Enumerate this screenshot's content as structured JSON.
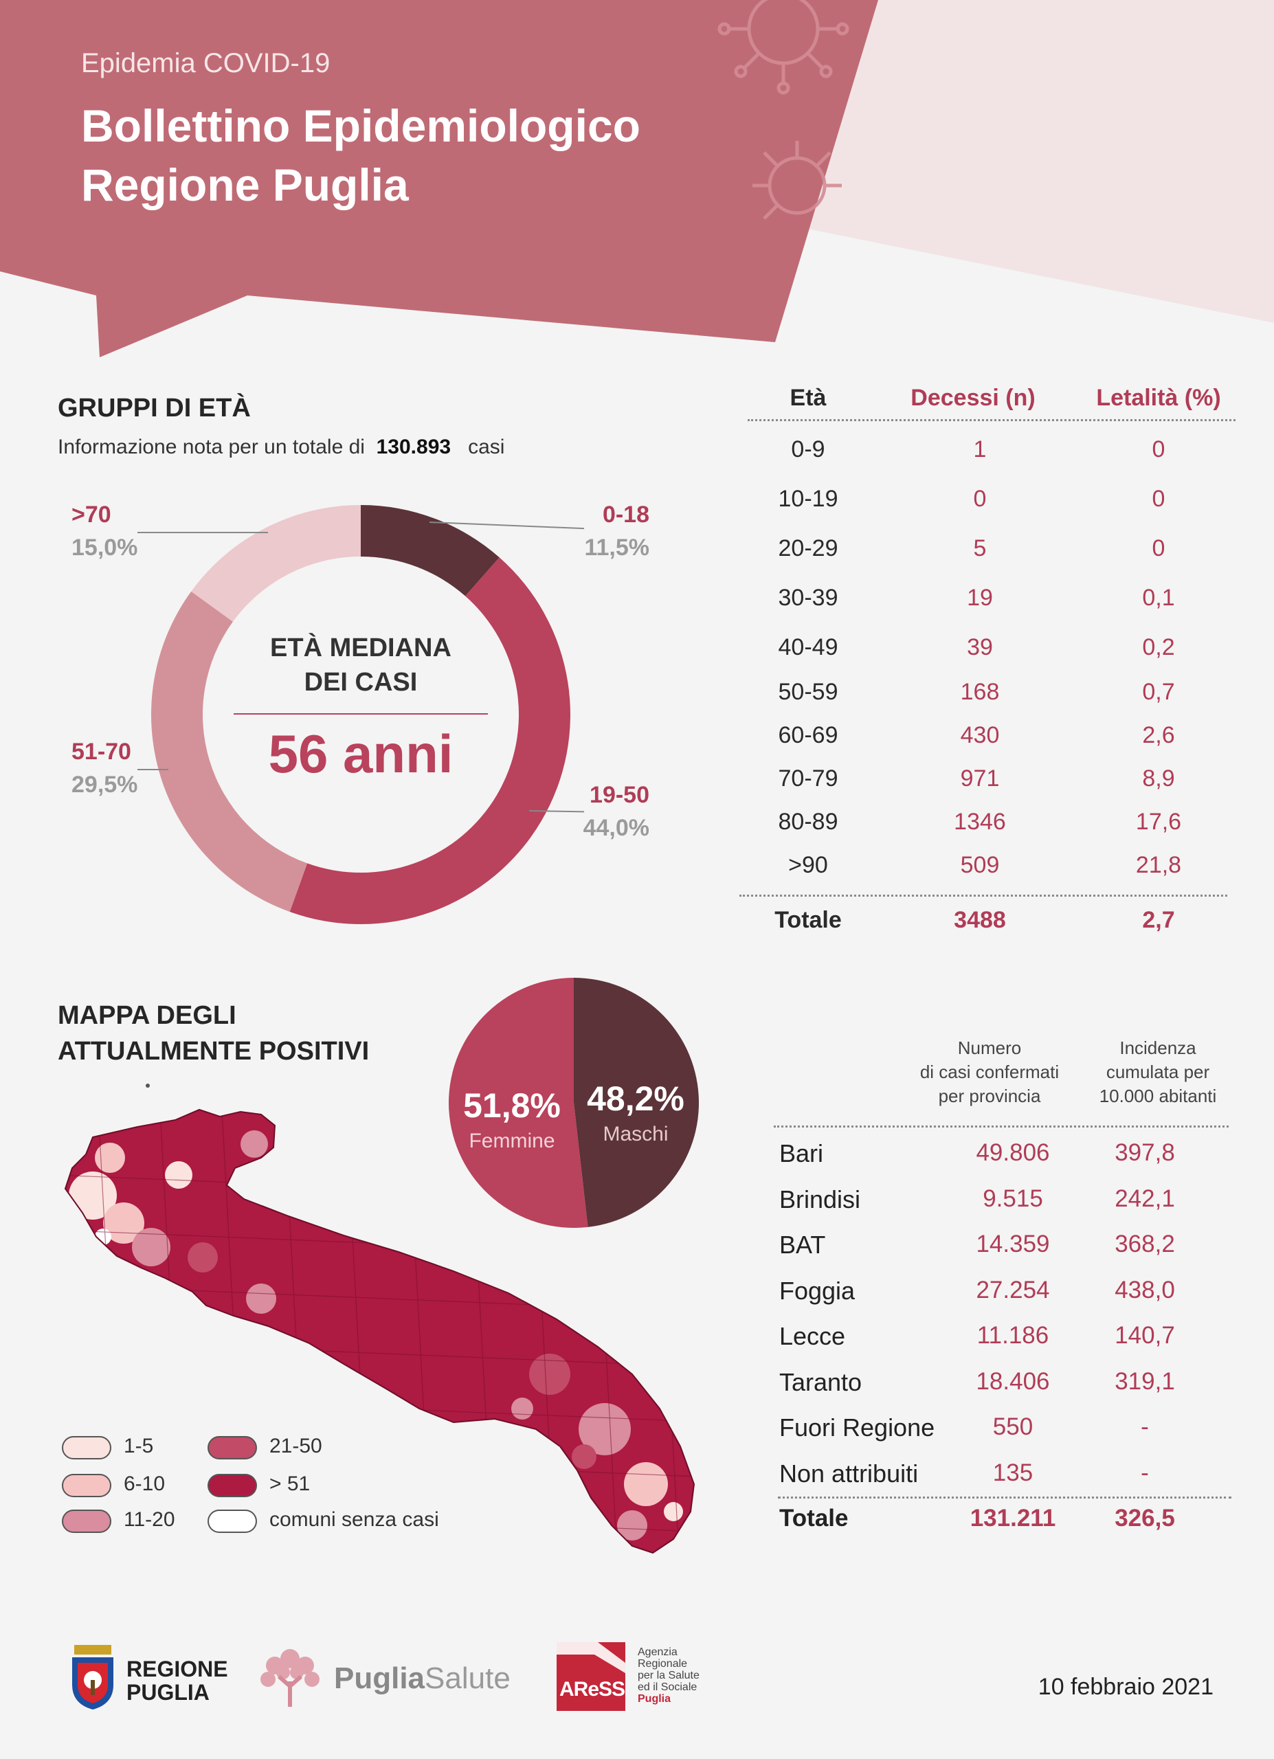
{
  "header": {
    "kicker": "Epidemia COVID-19",
    "title_line1": "Bollettino Epidemiologico",
    "title_line2": "Regione Puglia"
  },
  "age_groups": {
    "title": "GRUPPI DI ETÀ",
    "note_prefix": "Informazione nota per un totale di",
    "note_total": "130.893",
    "note_suffix": "casi",
    "center_label_1": "ETÀ MEDIANA",
    "center_label_2": "DEI CASI",
    "center_value": "56 anni",
    "slices": [
      {
        "label": "0-18",
        "pct": "11,5%",
        "value": 11.5,
        "color": "#5b3338"
      },
      {
        "label": "19-50",
        "pct": "44,0%",
        "value": 44.0,
        "color": "#b9425c"
      },
      {
        "label": "51-70",
        "pct": "29,5%",
        "value": 29.5,
        "color": "#d39299"
      },
      {
        "label": ">70",
        "pct": "15,0%",
        "value": 15.0,
        "color": "#ecc9cd"
      }
    ]
  },
  "deaths_table": {
    "headers": [
      "Età",
      "Decessi (n)",
      "Letalità (%)"
    ],
    "rows": [
      [
        "0-9",
        "1",
        "0"
      ],
      [
        "10-19",
        "0",
        "0"
      ],
      [
        "20-29",
        "5",
        "0"
      ],
      [
        "30-39",
        "19",
        "0,1"
      ],
      [
        "40-49",
        "39",
        "0,2"
      ],
      [
        "50-59",
        "168",
        "0,7"
      ],
      [
        "60-69",
        "430",
        "2,6"
      ],
      [
        "70-79",
        "971",
        "8,9"
      ],
      [
        "80-89",
        "1346",
        "17,6"
      ],
      [
        ">90",
        "509",
        "21,8"
      ]
    ],
    "total": [
      "Totale",
      "3488",
      "2,7"
    ]
  },
  "map_section": {
    "title_line1": "MAPPA DEGLI",
    "title_line2": "ATTUALMENTE POSITIVI",
    "sex_pie": [
      {
        "pct": "51,8%",
        "label": "Femmine",
        "value": 51.8,
        "color": "#b9425c"
      },
      {
        "pct": "48,2%",
        "label": "Maschi",
        "value": 48.2,
        "color": "#5b3338"
      }
    ],
    "legend": [
      {
        "label": "1-5",
        "color": "#fbe3df"
      },
      {
        "label": "6-10",
        "color": "#f6c3c3"
      },
      {
        "label": "11-20",
        "color": "#d98d9e"
      },
      {
        "label": "21-50",
        "color": "#c24b68"
      },
      {
        "label": "> 51",
        "color": "#ad1a42"
      },
      {
        "label": "comuni senza casi",
        "color": "#ffffff"
      }
    ]
  },
  "province_table": {
    "header_cases": [
      "Numero",
      "di casi confermati",
      "per provincia"
    ],
    "header_incidence": [
      "Incidenza",
      "cumulata per",
      "10.000 abitanti"
    ],
    "rows": [
      [
        "Bari",
        "49.806",
        "397,8"
      ],
      [
        "Brindisi",
        "9.515",
        "242,1"
      ],
      [
        "BAT",
        "14.359",
        "368,2"
      ],
      [
        "Foggia",
        "27.254",
        "438,0"
      ],
      [
        "Lecce",
        "11.186",
        "140,7"
      ],
      [
        "Taranto",
        "18.406",
        "319,1"
      ],
      [
        "Fuori Regione",
        "550",
        "-"
      ],
      [
        "Non attribuiti",
        "135",
        "-"
      ]
    ],
    "total": [
      "Totale",
      "131.211",
      "326,5"
    ]
  },
  "footer": {
    "logo1_line1": "REGIONE",
    "logo1_line2": "PUGLIA",
    "logo2_a": "Puglia",
    "logo2_b": "Salute",
    "logo3_mark": "AReSS",
    "logo3_text": [
      "Agenzia",
      "Regionale",
      "per la Salute",
      "ed il Sociale",
      "Puglia"
    ],
    "date": "10 febbraio 2021"
  }
}
